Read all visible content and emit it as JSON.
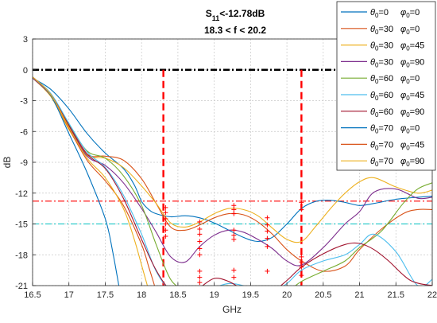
{
  "chart_data": {
    "type": "line",
    "title_main": "S",
    "title_sub": "11",
    "title_rest": "<-12.78dB",
    "subtitle": "18.3 < f < 20.2",
    "xlabel": "GHz",
    "ylabel": "dB",
    "xlim": [
      16.5,
      22
    ],
    "ylim": [
      -21,
      3
    ],
    "xticks": [
      16.5,
      17,
      17.5,
      18,
      18.5,
      19,
      19.5,
      20,
      20.5,
      21,
      21.5,
      22
    ],
    "xtick_labels": [
      "16.5",
      "17",
      "17.5",
      "18",
      "18.5",
      "19",
      "19.5",
      "20",
      "20.5",
      "21",
      "21.5",
      "22"
    ],
    "yticks": [
      3,
      0,
      -3,
      -6,
      -9,
      -12,
      -15,
      -18,
      -21
    ],
    "ytick_labels": [
      "3",
      "0",
      "-3",
      "-6",
      "-9",
      "-12",
      "-15",
      "-18",
      "-21"
    ],
    "grid": true,
    "legend_position": "top-right",
    "reference_lines": [
      {
        "kind": "h",
        "y": 0,
        "color": "#000000",
        "style": "dashdot"
      },
      {
        "kind": "h",
        "y": -12.78,
        "color": "#ff0000",
        "style": "dashdot"
      },
      {
        "kind": "h",
        "y": -15,
        "color": "#00bfbf",
        "style": "dashdot"
      },
      {
        "kind": "v",
        "x": 18.3,
        "color": "#ff0000",
        "style": "dashed"
      },
      {
        "kind": "v",
        "x": 20.2,
        "color": "#ff0000",
        "style": "dashed"
      }
    ],
    "series": [
      {
        "name": "θ0=0  φ0=0",
        "t": "0",
        "p": "0",
        "color": "#0072bd",
        "x": [
          16.5,
          16.75,
          17,
          17.25,
          17.5,
          17.75,
          17.9,
          18,
          18.1,
          18.2,
          18.4,
          18.6,
          18.8,
          19,
          19.2,
          19.4,
          19.6,
          19.8,
          20,
          20.2,
          20.4,
          20.6,
          20.8,
          21,
          21.2,
          21.5,
          21.8,
          22
        ],
        "y": [
          -0.8,
          -1.9,
          -3.8,
          -6.2,
          -8.1,
          -9.6,
          -11.2,
          -12.8,
          -13.6,
          -14.0,
          -14.3,
          -14.2,
          -14.4,
          -14.9,
          -15.6,
          -16.3,
          -16.7,
          -16.3,
          -15.0,
          -13.5,
          -12.8,
          -12.7,
          -12.9,
          -13.2,
          -13.0,
          -12.6,
          -12.4,
          -12.3
        ]
      },
      {
        "name": "θ0=30  φ0=0",
        "t": "30",
        "p": "0",
        "color": "#d95319",
        "x": [
          16.5,
          16.75,
          17,
          17.25,
          17.5,
          17.75,
          18,
          18.2,
          18.4,
          18.6,
          18.8,
          19,
          19.2,
          19.4,
          19.6,
          19.8,
          20,
          20.2,
          20.5,
          20.8,
          21,
          21.3,
          21.6,
          21.8,
          22
        ],
        "y": [
          -0.8,
          -2.5,
          -5.5,
          -8.2,
          -8.4,
          -8.8,
          -10.6,
          -13.0,
          -15.3,
          -15.6,
          -15.1,
          -14.4,
          -14.0,
          -14.1,
          -14.8,
          -16.0,
          -17.5,
          -18.6,
          -19.6,
          -19.1,
          -17.5,
          -15.5,
          -14.0,
          -13.6,
          -13.6
        ]
      },
      {
        "name": "θ0=30  φ0=45",
        "t": "30",
        "p": "45",
        "color": "#edb120",
        "x": [
          16.5,
          16.75,
          17,
          17.25,
          17.5,
          17.75,
          18,
          18.2,
          18.4,
          18.6,
          18.8,
          19,
          19.2,
          19.4,
          19.6,
          19.8,
          20,
          20.2,
          20.4,
          20.6,
          20.8,
          21,
          21.2,
          21.5,
          21.8,
          22
        ],
        "y": [
          -0.8,
          -2.6,
          -5.8,
          -8.3,
          -8.6,
          -9.5,
          -11.3,
          -13.0,
          -14.9,
          -15.3,
          -14.8,
          -14.0,
          -13.5,
          -13.6,
          -14.2,
          -15.4,
          -16.5,
          -16.7,
          -15.2,
          -13.5,
          -12.0,
          -10.9,
          -10.5,
          -11.4,
          -12.0,
          -11.7
        ]
      },
      {
        "name": "θ0=30  φ0=90",
        "t": "30",
        "p": "90",
        "color": "#7e2f8e",
        "x": [
          16.5,
          16.75,
          17,
          17.25,
          17.5,
          17.75,
          18,
          18.2,
          18.4,
          18.6,
          18.8,
          19,
          19.2,
          19.4,
          19.6,
          19.8,
          20,
          20.2,
          20.5,
          20.8,
          21,
          21.2,
          21.5,
          21.8,
          22
        ],
        "y": [
          -0.8,
          -2.5,
          -5.5,
          -8.4,
          -9.3,
          -11.0,
          -13.5,
          -15.8,
          -18.2,
          -18.7,
          -17.2,
          -16.1,
          -15.6,
          -15.8,
          -16.5,
          -17.4,
          -18.6,
          -19.0,
          -17.3,
          -15.0,
          -13.8,
          -11.9,
          -11.6,
          -12.5,
          -12.4
        ]
      },
      {
        "name": "θ0=60  φ0=0",
        "t": "60",
        "p": "0",
        "color": "#77ac30",
        "x": [
          16.5,
          16.75,
          17,
          17.25,
          17.5,
          17.75,
          18,
          18.2,
          18.4,
          18.6,
          18.8,
          19,
          19.2,
          19.4,
          19.6,
          19.8,
          20,
          20.2,
          20.5,
          20.8,
          21.0,
          21.3,
          21.6,
          21.8,
          22
        ],
        "y": [
          -0.7,
          -2.4,
          -5.3,
          -7.9,
          -8.6,
          -10.3,
          -13.2,
          -17.0,
          -20.4,
          -21.4,
          -21.6,
          -21.2,
          -21.0,
          -21.5,
          -22.0,
          -22.0,
          -21.6,
          -20.6,
          -19.6,
          -18.6,
          -17.3,
          -15.7,
          -13.0,
          -11.6,
          -11.0
        ]
      },
      {
        "name": "θ0=60  φ0=45",
        "t": "60",
        "p": "45",
        "color": "#4dbeee",
        "x": [
          16.5,
          16.75,
          17,
          17.25,
          17.5,
          17.75,
          18,
          18.2,
          18.4,
          18.6,
          18.8,
          19,
          19.2,
          19.4,
          19.6,
          19.8,
          20,
          20.2,
          20.5,
          20.8,
          21,
          21.2,
          21.5,
          21.8,
          22
        ],
        "y": [
          -0.7,
          -2.3,
          -5.2,
          -8.0,
          -9.5,
          -12.2,
          -16.0,
          -19.6,
          -21.5,
          -22.0,
          -21.8,
          -21.2,
          -20.8,
          -21.0,
          -21.5,
          -21.6,
          -20.8,
          -19.5,
          -18.6,
          -18.0,
          -17.0,
          -16.0,
          -17.7,
          -21.0,
          -20.4
        ]
      },
      {
        "name": "θ0=60  φ0=90",
        "t": "60",
        "p": "90",
        "color": "#a2142f",
        "x": [
          16.5,
          16.75,
          17,
          17.25,
          17.5,
          17.75,
          18,
          18.2,
          18.4,
          18.6,
          18.8,
          19,
          19.2,
          19.4,
          19.6,
          19.8,
          20,
          20.2,
          20.5,
          20.8,
          21,
          21.2,
          21.4,
          21.7,
          22
        ],
        "y": [
          -0.7,
          -2.4,
          -5.4,
          -8.2,
          -9.6,
          -12.5,
          -16.5,
          -19.5,
          -21.5,
          -22.0,
          -21.2,
          -20.3,
          -20.6,
          -21.4,
          -22.0,
          -21.6,
          -20.5,
          -19.2,
          -17.9,
          -17.0,
          -16.9,
          -17.5,
          -18.6,
          -20.5,
          -21.0
        ]
      },
      {
        "name": "θ0=70  φ0=0",
        "t": "70",
        "p": "0",
        "color": "#0072bd",
        "x": [
          16.5,
          16.75,
          17,
          17.25,
          17.5,
          17.6,
          17.7
        ],
        "y": [
          -0.7,
          -2.5,
          -6.2,
          -10.0,
          -14.5,
          -17.6,
          -21.5
        ]
      },
      {
        "name": "θ0=70  φ0=45",
        "t": "70",
        "p": "45",
        "color": "#d95319",
        "x": [
          16.5,
          16.75,
          17,
          17.25,
          17.5,
          17.75,
          18,
          18.1,
          18.2
        ],
        "y": [
          -0.7,
          -2.4,
          -5.7,
          -8.8,
          -10.8,
          -13.2,
          -17.0,
          -19.2,
          -21.5
        ]
      },
      {
        "name": "θ0=70  φ0=90",
        "t": "70",
        "p": "90",
        "color": "#edb120",
        "x": [
          16.5,
          16.75,
          17,
          17.25,
          17.5,
          17.75,
          17.9,
          18.0,
          18.1
        ],
        "y": [
          -0.7,
          -2.4,
          -5.6,
          -8.6,
          -10.5,
          -13.5,
          -16.5,
          -19.0,
          -21.5
        ]
      }
    ],
    "markers": {
      "symbol": "+",
      "color": "#ff0000",
      "points": [
        [
          18.33,
          -13.4
        ],
        [
          18.33,
          -13.9
        ],
        [
          18.33,
          -14.5
        ],
        [
          18.33,
          -15.0
        ],
        [
          18.33,
          -15.6
        ],
        [
          18.33,
          -16.2
        ],
        [
          18.8,
          -14.8
        ],
        [
          18.8,
          -15.5
        ],
        [
          18.8,
          -16.0
        ],
        [
          18.8,
          -16.7
        ],
        [
          18.8,
          -17.4
        ],
        [
          18.8,
          -18.0
        ],
        [
          18.8,
          -19.6
        ],
        [
          18.8,
          -20.2
        ],
        [
          18.8,
          -20.7
        ],
        [
          19.27,
          -13.2
        ],
        [
          19.27,
          -13.6
        ],
        [
          19.27,
          -14.0
        ],
        [
          19.27,
          -15.6
        ],
        [
          19.27,
          -16.1
        ],
        [
          19.27,
          -16.5
        ],
        [
          19.27,
          -19.5
        ],
        [
          19.27,
          -20.2
        ],
        [
          19.73,
          -14.4
        ],
        [
          19.73,
          -15.1
        ],
        [
          19.73,
          -15.7
        ],
        [
          19.73,
          -16.4
        ],
        [
          19.73,
          -17.2
        ],
        [
          19.73,
          -19.6
        ],
        [
          20.2,
          -12.9
        ],
        [
          20.2,
          -13.6
        ],
        [
          20.2,
          -18.2
        ],
        [
          20.2,
          -18.7
        ],
        [
          20.2,
          -19.2
        ],
        [
          20.2,
          -20.0
        ]
      ]
    }
  }
}
